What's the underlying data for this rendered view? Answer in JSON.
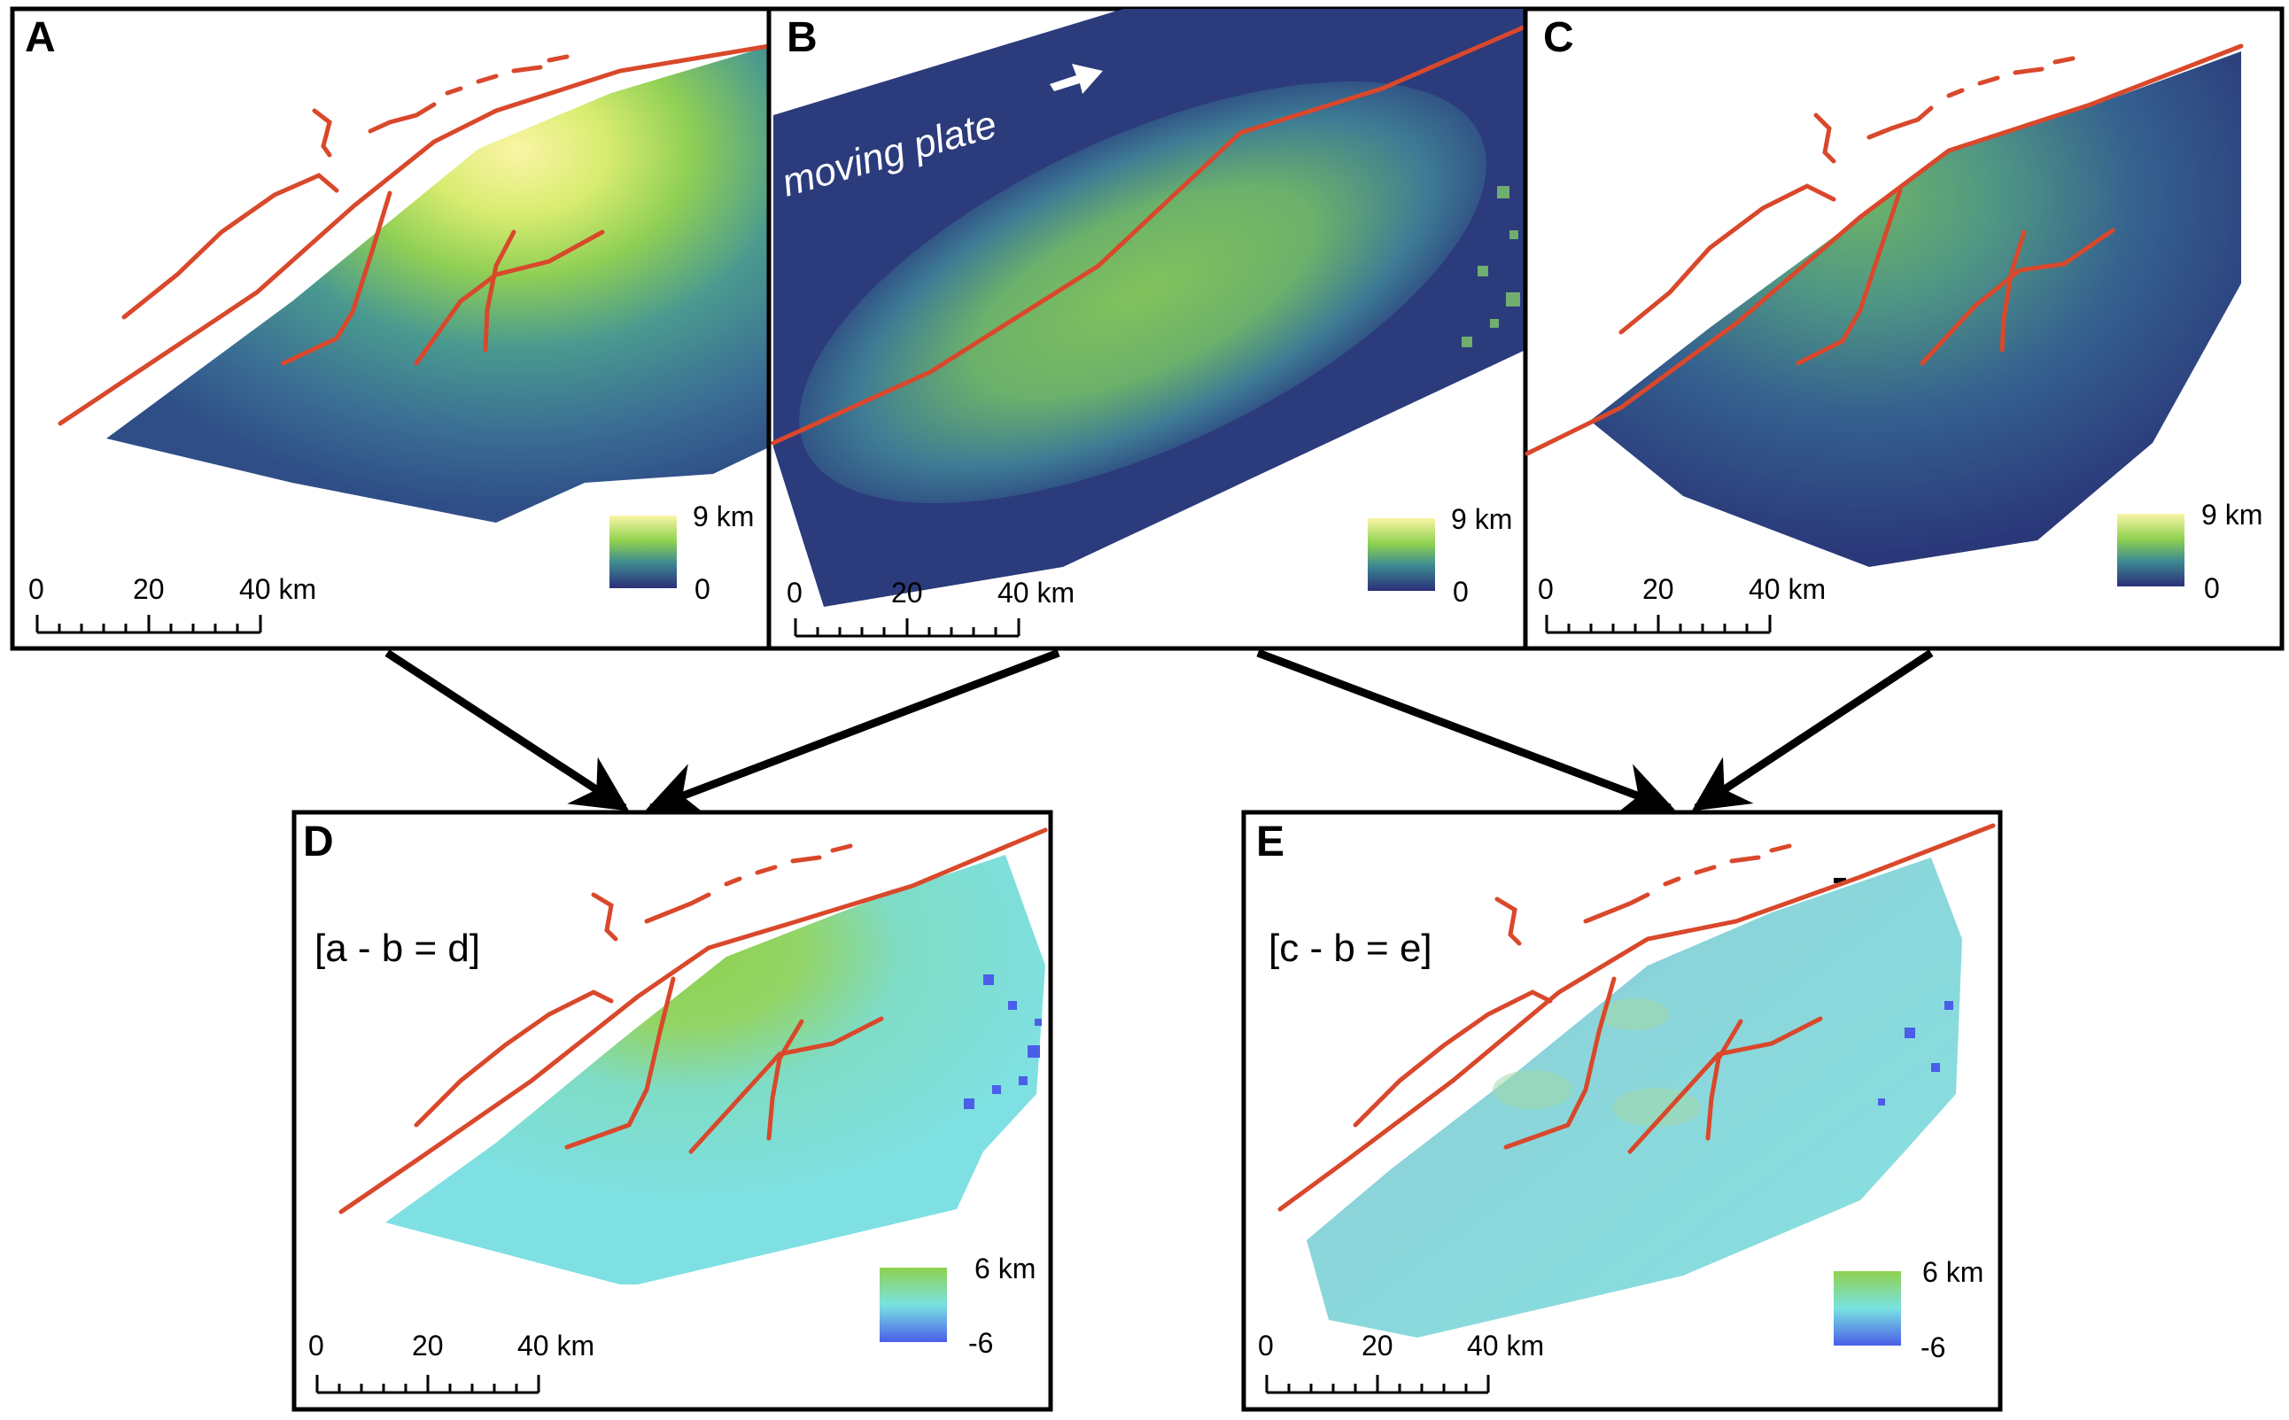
{
  "panels": {
    "a": {
      "label": "A",
      "legend_max": "9 km",
      "legend_min": "0"
    },
    "b": {
      "label": "B",
      "legend_max": "9 km",
      "legend_min": "0",
      "annotation": "moving plate"
    },
    "c": {
      "label": "C",
      "legend_max": "9 km",
      "legend_min": "0"
    },
    "d": {
      "label": "D",
      "equation": "[a - b = d]",
      "legend_max": "6 km",
      "legend_min": "-6"
    },
    "e": {
      "label": "E",
      "equation": "[c - b = e]",
      "legend_max": "6 km",
      "legend_min": "-6"
    }
  },
  "scale_bar": {
    "t0": "0",
    "t1": "20",
    "t2": "40 km"
  },
  "colors": {
    "fault": "#d9482b",
    "frame": "#000000",
    "depth_low": "#2c2f79",
    "depth_mid": "#8fd14f",
    "depth_high": "#fbf5a6",
    "diff_low": "#4a5ee8",
    "diff_mid": "#79e2e2",
    "diff_high": "#8fd14f"
  }
}
